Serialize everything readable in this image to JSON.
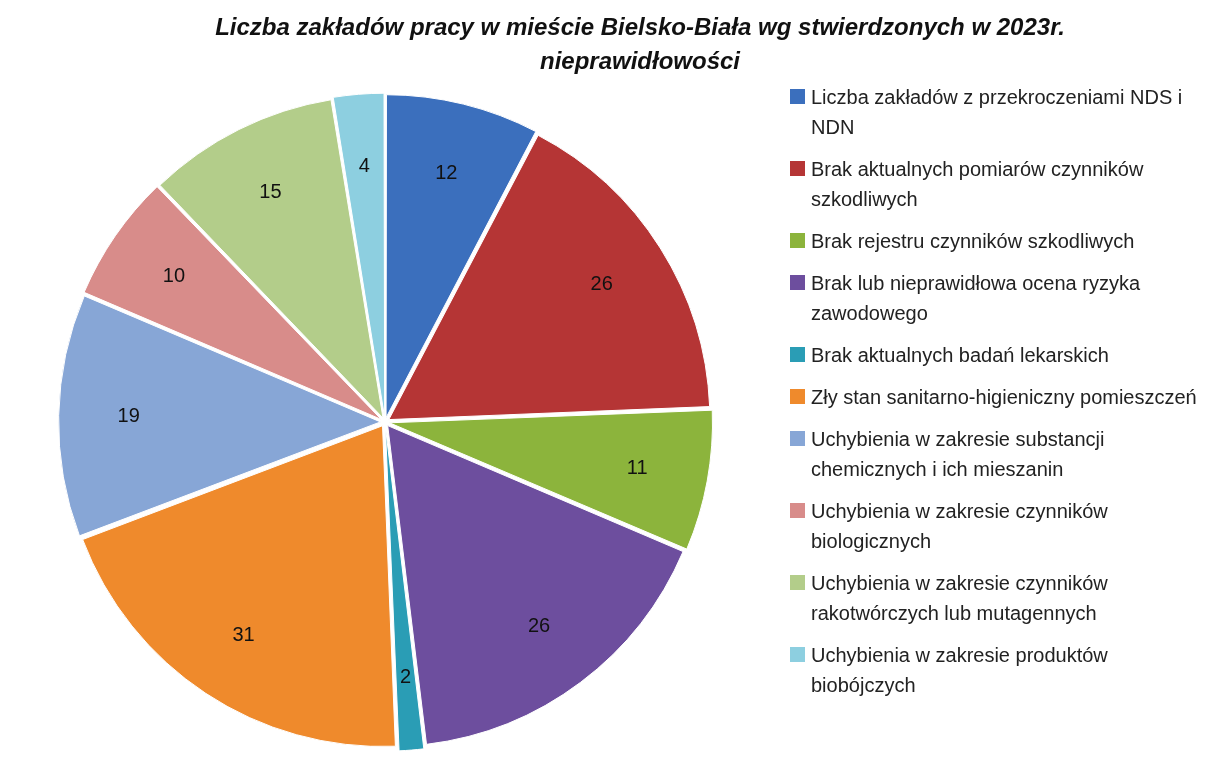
{
  "chart_data": {
    "type": "pie",
    "title": "Liczba zakładów pracy w mieście Bielsko-Biała wg stwierdzonych w  2023r. nieprawidłowości",
    "categories": [
      "Liczba zakładów z przekroczeniami NDS i NDN",
      "Brak aktualnych pomiarów czynników szkodliwych",
      "Brak rejestru czynników szkodliwych",
      "Brak lub nieprawidłowa ocena ryzyka zawodowego",
      "Brak aktualnych badań lekarskich",
      "Zły stan sanitarno-higieniczny pomieszczeń",
      "Uchybienia w zakresie substancji chemicznych i ich mieszanin",
      "Uchybienia w zakresie czynników biologicznych",
      "Uchybienia w zakresie czynników rakotwórczych lub mutagennych",
      "Uchybienia w zakresie produktów biobójczych"
    ],
    "values": [
      12,
      26,
      11,
      26,
      2,
      31,
      19,
      10,
      15,
      4
    ],
    "colors": [
      "#3b6fbd",
      "#b53535",
      "#8cb43c",
      "#6d4e9e",
      "#2a9db5",
      "#ef8a2c",
      "#87a6d6",
      "#d88c8a",
      "#b3cd8a",
      "#8dcfe0"
    ],
    "data_labels": true,
    "legend": "right"
  }
}
